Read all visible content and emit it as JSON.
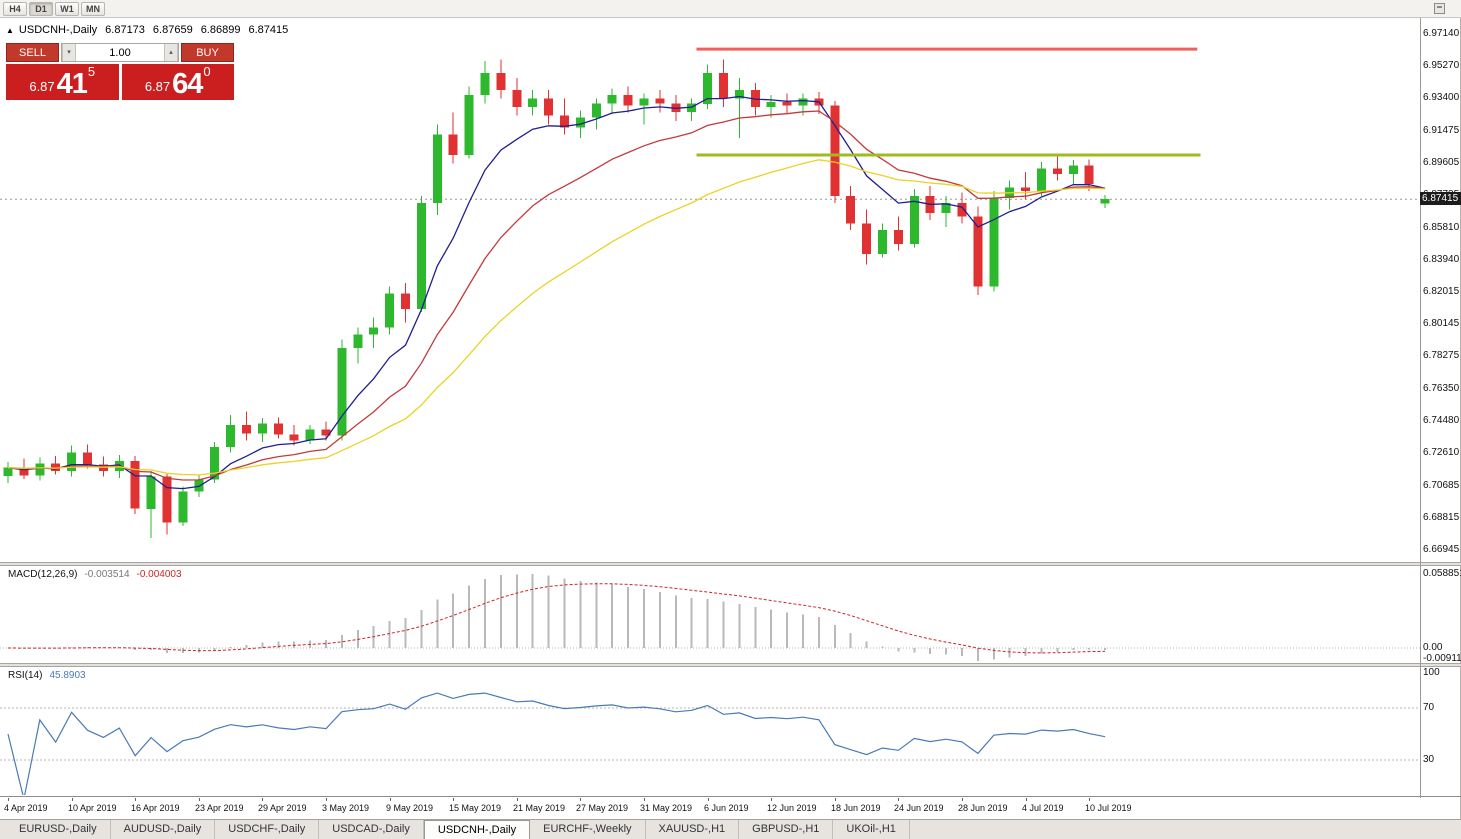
{
  "toolbar": {
    "timeframes": [
      "H4",
      "D1",
      "W1",
      "MN"
    ],
    "active": "D1"
  },
  "icons": {
    "chart_arrow": "▲",
    "spin_up": "▴",
    "spin_down": "▾"
  },
  "chart_header": {
    "symbol": "USDCNH-,Daily",
    "open": "6.87173",
    "high": "6.87659",
    "low": "6.86899",
    "close": "6.87415"
  },
  "trade_panel": {
    "sell_label": "SELL",
    "buy_label": "BUY",
    "volume": "1.00",
    "sell_price": {
      "prefix": "6.87",
      "digits": "41",
      "pip": "5"
    },
    "buy_price": {
      "prefix": "6.87",
      "digits": "64",
      "pip": "0"
    }
  },
  "price_axis": {
    "labels": [
      "6.97140",
      "6.95270",
      "6.93400",
      "6.91475",
      "6.89605",
      "6.87735",
      "6.85810",
      "6.83940",
      "6.82015",
      "6.80145",
      "6.78275",
      "6.76350",
      "6.74480",
      "6.72610",
      "6.70685",
      "6.68815",
      "6.66945"
    ],
    "current": "6.87415"
  },
  "macd_panel": {
    "name": "MACD(12,26,9)",
    "value_main": "-0.003514",
    "value_signal": "-0.004003",
    "axis": [
      "0.058851",
      "0.00",
      "-0.009116"
    ]
  },
  "rsi_panel": {
    "name": "RSI(14)",
    "value": "45.8903",
    "axis": [
      "100",
      "70",
      "30"
    ]
  },
  "date_axis": [
    {
      "text": "4 Apr 2019",
      "bar": 0
    },
    {
      "text": "10 Apr 2019",
      "bar": 4
    },
    {
      "text": "16 Apr 2019",
      "bar": 8
    },
    {
      "text": "23 Apr 2019",
      "bar": 12
    },
    {
      "text": "29 Apr 2019",
      "bar": 16
    },
    {
      "text": "3 May 2019",
      "bar": 20
    },
    {
      "text": "9 May 2019",
      "bar": 24
    },
    {
      "text": "15 May 2019",
      "bar": 28
    },
    {
      "text": "21 May 2019",
      "bar": 32
    },
    {
      "text": "27 May 2019",
      "bar": 36
    },
    {
      "text": "31 May 2019",
      "bar": 40
    },
    {
      "text": "6 Jun 2019",
      "bar": 44
    },
    {
      "text": "12 Jun 2019",
      "bar": 48
    },
    {
      "text": "18 Jun 2019",
      "bar": 52
    },
    {
      "text": "24 Jun 2019",
      "bar": 56
    },
    {
      "text": "28 Jun 2019",
      "bar": 60
    },
    {
      "text": "4 Jul 2019",
      "bar": 64
    },
    {
      "text": "10 Jul 2019",
      "bar": 68
    }
  ],
  "tabbar": {
    "tabs": [
      "EURUSD-,Daily",
      "AUDUSD-,Daily",
      "USDCHF-,Daily",
      "USDCAD-,Daily",
      "USDCNH-,Daily",
      "EURCHF-,Weekly",
      "XAUUSD-,H1",
      "GBPUSD-,H1",
      "UKOil-,H1"
    ],
    "active_index": 4
  },
  "chart_data": {
    "type": "candlestick",
    "symbol": "USDCNH",
    "timeframe": "Daily",
    "title": "USDCNH-,Daily",
    "ylim": [
      6.66945,
      6.9714
    ],
    "colors": {
      "bull": "#2db82d",
      "bear": "#e03232",
      "ma_fast": "#1f1f8f",
      "ma_mid": "#c23a3a",
      "ma_slow": "#ecd224",
      "macd_hist": "#b9b9b9",
      "macd_signal": "#cc2525",
      "rsi": "#4a7ab5",
      "resistance": "#f25f5f",
      "support": "#9fbb1e"
    },
    "dates": [
      "2019-04-04",
      "2019-04-05",
      "2019-04-08",
      "2019-04-09",
      "2019-04-10",
      "2019-04-11",
      "2019-04-12",
      "2019-04-15",
      "2019-04-16",
      "2019-04-17",
      "2019-04-18",
      "2019-04-22",
      "2019-04-23",
      "2019-04-24",
      "2019-04-25",
      "2019-04-26",
      "2019-04-29",
      "2019-04-30",
      "2019-05-01",
      "2019-05-02",
      "2019-05-03",
      "2019-05-06",
      "2019-05-07",
      "2019-05-08",
      "2019-05-09",
      "2019-05-10",
      "2019-05-13",
      "2019-05-14",
      "2019-05-15",
      "2019-05-16",
      "2019-05-17",
      "2019-05-20",
      "2019-05-21",
      "2019-05-22",
      "2019-05-23",
      "2019-05-24",
      "2019-05-27",
      "2019-05-28",
      "2019-05-29",
      "2019-05-30",
      "2019-05-31",
      "2019-06-03",
      "2019-06-04",
      "2019-06-05",
      "2019-06-06",
      "2019-06-07",
      "2019-06-10",
      "2019-06-11",
      "2019-06-12",
      "2019-06-13",
      "2019-06-14",
      "2019-06-17",
      "2019-06-18",
      "2019-06-19",
      "2019-06-20",
      "2019-06-21",
      "2019-06-24",
      "2019-06-25",
      "2019-06-26",
      "2019-06-27",
      "2019-06-28",
      "2019-07-01",
      "2019-07-02",
      "2019-07-03",
      "2019-07-04",
      "2019-07-05",
      "2019-07-08",
      "2019-07-09",
      "2019-07-10",
      "2019-07-11"
    ],
    "candles": [
      [
        6.712,
        6.7205,
        6.708,
        6.717
      ],
      [
        6.717,
        6.7225,
        6.7105,
        6.7125
      ],
      [
        6.7125,
        6.723,
        6.7095,
        6.7195
      ],
      [
        6.7195,
        6.724,
        6.713,
        6.715
      ],
      [
        6.715,
        6.73,
        6.712,
        6.726
      ],
      [
        6.726,
        6.7305,
        6.7165,
        6.719
      ],
      [
        6.719,
        6.7235,
        6.712,
        6.715
      ],
      [
        6.715,
        6.7245,
        6.711,
        6.721
      ],
      [
        6.721,
        6.724,
        6.69,
        6.693
      ],
      [
        6.693,
        6.715,
        6.676,
        6.712
      ],
      [
        6.712,
        6.714,
        6.678,
        6.685
      ],
      [
        6.685,
        6.706,
        6.683,
        6.703
      ],
      [
        6.703,
        6.713,
        6.7,
        6.71
      ],
      [
        6.71,
        6.732,
        6.708,
        6.729
      ],
      [
        6.729,
        6.748,
        6.726,
        6.742
      ],
      [
        6.742,
        6.75,
        6.733,
        6.737
      ],
      [
        6.737,
        6.746,
        6.732,
        6.743
      ],
      [
        6.743,
        6.7465,
        6.734,
        6.7365
      ],
      [
        6.7365,
        6.742,
        6.73,
        6.733
      ],
      [
        6.733,
        6.742,
        6.731,
        6.7395
      ],
      [
        6.7395,
        6.744,
        6.733,
        6.736
      ],
      [
        6.736,
        6.792,
        6.733,
        6.787
      ],
      [
        6.787,
        6.799,
        6.778,
        6.795
      ],
      [
        6.795,
        6.805,
        6.787,
        6.799
      ],
      [
        6.799,
        6.823,
        6.795,
        6.819
      ],
      [
        6.819,
        6.825,
        6.802,
        6.81
      ],
      [
        6.81,
        6.876,
        6.808,
        6.872
      ],
      [
        6.872,
        6.918,
        6.865,
        6.912
      ],
      [
        6.912,
        6.925,
        6.895,
        6.9
      ],
      [
        6.9,
        6.94,
        6.898,
        6.935
      ],
      [
        6.935,
        6.955,
        6.93,
        6.948
      ],
      [
        6.948,
        6.956,
        6.933,
        6.938
      ],
      [
        6.938,
        6.945,
        6.923,
        6.928
      ],
      [
        6.928,
        6.938,
        6.923,
        6.933
      ],
      [
        6.933,
        6.938,
        6.918,
        6.923
      ],
      [
        6.923,
        6.933,
        6.912,
        6.916
      ],
      [
        6.916,
        6.926,
        6.91,
        6.922
      ],
      [
        6.922,
        6.933,
        6.915,
        6.93
      ],
      [
        6.93,
        6.939,
        6.924,
        6.935
      ],
      [
        6.935,
        6.94,
        6.925,
        6.929
      ],
      [
        6.929,
        6.936,
        6.918,
        6.933
      ],
      [
        6.933,
        6.938,
        6.925,
        6.93
      ],
      [
        6.93,
        6.935,
        6.92,
        6.925
      ],
      [
        6.925,
        6.933,
        6.92,
        6.93
      ],
      [
        6.93,
        6.953,
        6.927,
        6.948
      ],
      [
        6.948,
        6.956,
        6.928,
        6.933
      ],
      [
        6.933,
        6.945,
        6.91,
        6.938
      ],
      [
        6.938,
        6.942,
        6.923,
        6.928
      ],
      [
        6.928,
        6.935,
        6.922,
        6.931
      ],
      [
        6.931,
        6.936,
        6.924,
        6.929
      ],
      [
        6.929,
        6.936,
        6.923,
        6.933
      ],
      [
        6.933,
        6.937,
        6.924,
        6.929
      ],
      [
        6.929,
        6.9315,
        6.872,
        6.876
      ],
      [
        6.876,
        6.882,
        6.856,
        6.86
      ],
      [
        6.86,
        6.868,
        6.836,
        6.842
      ],
      [
        6.842,
        6.86,
        6.84,
        6.856
      ],
      [
        6.856,
        6.864,
        6.844,
        6.848
      ],
      [
        6.848,
        6.88,
        6.846,
        6.876
      ],
      [
        6.876,
        6.882,
        6.862,
        6.866
      ],
      [
        6.866,
        6.876,
        6.858,
        6.872
      ],
      [
        6.872,
        6.878,
        6.86,
        6.864
      ],
      [
        6.864,
        6.87,
        6.818,
        6.823
      ],
      [
        6.823,
        6.879,
        6.82,
        6.875
      ],
      [
        6.875,
        6.885,
        6.868,
        6.881
      ],
      [
        6.881,
        6.89,
        6.874,
        6.879
      ],
      [
        6.879,
        6.896,
        6.876,
        6.892
      ],
      [
        6.892,
        6.899,
        6.885,
        6.889
      ],
      [
        6.889,
        6.897,
        6.883,
        6.894
      ],
      [
        6.894,
        6.8975,
        6.879,
        6.883
      ],
      [
        6.87173,
        6.87659,
        6.86899,
        6.87415
      ]
    ],
    "moving_averages": [
      {
        "name": "fast",
        "period": 7,
        "color_key": "ma_fast"
      },
      {
        "name": "medium",
        "period": 15,
        "color_key": "ma_mid"
      },
      {
        "name": "slow",
        "period": 30,
        "color_key": "ma_slow"
      }
    ],
    "levels": [
      {
        "name": "resistance",
        "price": 6.962,
        "from_bar": 43.3,
        "to_bar": 74.8,
        "color_key": "resistance",
        "width": 3
      },
      {
        "name": "support",
        "price": 6.9,
        "from_bar": 43.3,
        "to_bar": 75.0,
        "color_key": "support",
        "width": 3
      }
    ],
    "macd": {
      "fast": 12,
      "slow": 26,
      "signal": 9,
      "current_main": -0.003514,
      "current_signal": -0.004003
    },
    "rsi": {
      "period": 14,
      "current": 45.8903,
      "levels": [
        70,
        30
      ]
    }
  }
}
